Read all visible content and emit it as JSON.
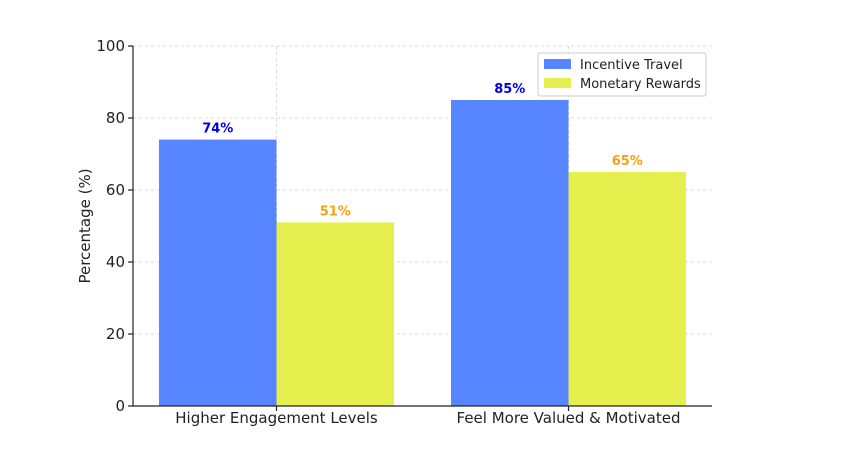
{
  "chart_data": {
    "type": "bar",
    "title": "",
    "xlabel": "",
    "ylabel": "Percentage (%)",
    "ylim": [
      0,
      100
    ],
    "yticks": [
      0,
      20,
      40,
      60,
      80,
      100
    ],
    "grid": true,
    "legend_position": "top-right",
    "categories": [
      "Higher Engagement Levels",
      "Feel More Valued & Motivated"
    ],
    "series": [
      {
        "name": "Incentive Travel",
        "values": [
          74,
          85
        ],
        "labels": [
          "74%",
          "85%"
        ],
        "color": "#5784ff",
        "label_color": "#0000dd"
      },
      {
        "name": "Monetary Rewards",
        "values": [
          51,
          65
        ],
        "labels": [
          "51%",
          "65%"
        ],
        "color": "#e5f04e",
        "label_color": "#f5a010"
      }
    ]
  }
}
